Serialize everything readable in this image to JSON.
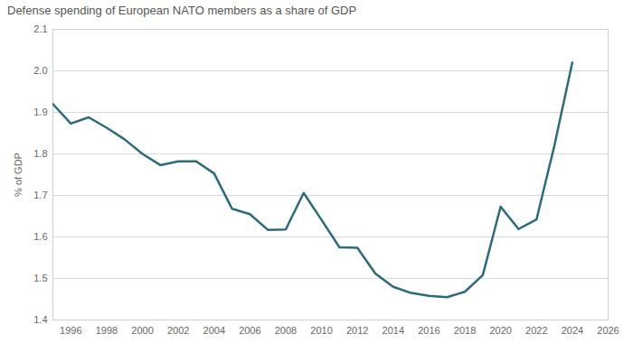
{
  "chart_data": {
    "type": "line",
    "title": "Defense spending of European NATO members as a share of GDP",
    "y_label": "% of GDP",
    "x": [
      1995,
      1996,
      1997,
      1998,
      1999,
      2000,
      2001,
      2002,
      2003,
      2004,
      2005,
      2006,
      2007,
      2008,
      2009,
      2010,
      2011,
      2012,
      2013,
      2014,
      2015,
      2016,
      2017,
      2018,
      2019,
      2020,
      2021,
      2022,
      2023,
      2024
    ],
    "values": [
      1.92,
      1.873,
      1.888,
      1.863,
      1.835,
      1.8,
      1.773,
      1.782,
      1.782,
      1.753,
      1.668,
      1.655,
      1.617,
      1.618,
      1.706,
      1.641,
      1.575,
      1.574,
      1.512,
      1.48,
      1.465,
      1.458,
      1.455,
      1.468,
      1.508,
      1.673,
      1.619,
      1.642,
      1.82,
      2.02
    ],
    "color": "#2b6b7c",
    "xlim": [
      1995,
      2026
    ],
    "xticks": [
      1996,
      1998,
      2000,
      2002,
      2004,
      2006,
      2008,
      2010,
      2012,
      2014,
      2016,
      2018,
      2020,
      2022,
      2024,
      2026
    ],
    "ylim": [
      1.4,
      2.1
    ],
    "yticks": [
      1.4,
      1.5,
      1.6,
      1.7,
      1.8,
      1.9,
      {
        "value": 2,
        "label": "2.0"
      },
      2.1
    ],
    "grid": true
  }
}
